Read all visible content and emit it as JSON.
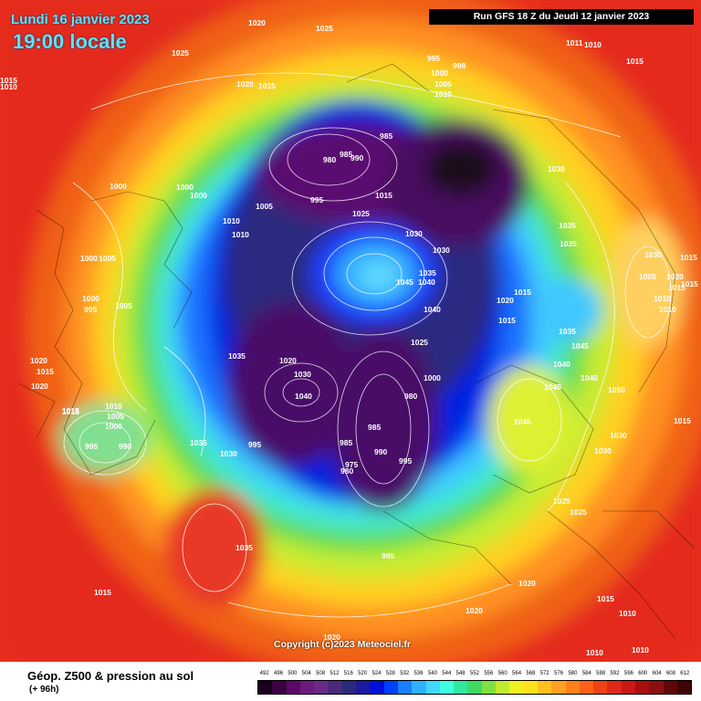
{
  "header": {
    "date": "Lundi 16 janvier 2023",
    "hour": "19:00 locale",
    "run": "Run GFS 18 Z du Jeudi 12 janvier 2023"
  },
  "copyright": "Copyright (c)2023 Meteociel.fr",
  "footer": {
    "title": "Géop. Z500 & pression au sol",
    "subtitle": "(+ 96h)"
  },
  "scale": {
    "labels": [
      "492",
      "496",
      "500",
      "504",
      "508",
      "512",
      "516",
      "520",
      "524",
      "528",
      "532",
      "536",
      "540",
      "544",
      "548",
      "552",
      "556",
      "560",
      "564",
      "568",
      "572",
      "576",
      "580",
      "584",
      "588",
      "592",
      "596",
      "600",
      "604",
      "608",
      "612"
    ],
    "colors": [
      "#1a001a",
      "#3a0040",
      "#5a0a64",
      "#6e1a7c",
      "#6a2a86",
      "#4a2a7c",
      "#2a2a7a",
      "#1a1aa0",
      "#0010d8",
      "#0040ff",
      "#1a80ff",
      "#30b0ff",
      "#40d8ff",
      "#40ffe0",
      "#30e8a0",
      "#40d860",
      "#80e040",
      "#c0ec30",
      "#f0f020",
      "#ffe020",
      "#ffc020",
      "#ffa020",
      "#ff8018",
      "#ff6018",
      "#f04018",
      "#e02818",
      "#c81818",
      "#a81010",
      "#881010",
      "#600808",
      "#400404"
    ]
  },
  "pressure_labels": [
    "1020",
    "1025",
    "1025",
    "1020",
    "1015",
    "1015",
    "1010",
    "1011",
    "1010",
    "995",
    "998",
    "1000",
    "1005",
    "1010",
    "985",
    "980",
    "985",
    "990",
    "1000",
    "1000",
    "995",
    "1000",
    "1005",
    "1010",
    "1010",
    "1015",
    "1025",
    "1030",
    "1030",
    "1035",
    "1035",
    "1030",
    "1000",
    "1005",
    "1040",
    "1045",
    "1040",
    "1020",
    "1015",
    "1015",
    "1005",
    "1010",
    "1020",
    "1015",
    "1010",
    "1015",
    "1000",
    "995",
    "1005",
    "1035",
    "1020",
    "1030",
    "1040",
    "1025",
    "1000",
    "980",
    "985",
    "990",
    "995",
    "985",
    "975",
    "980",
    "995",
    "1035",
    "1030",
    "1015",
    "1010",
    "1005",
    "1000",
    "995",
    "990",
    "1020",
    "1015",
    "1035",
    "1045",
    "1040",
    "1045",
    "1040",
    "1045",
    "1030",
    "1025",
    "1025",
    "1015",
    "1030",
    "1035",
    "995",
    "1020",
    "1020",
    "1015",
    "1010",
    "1010",
    "1010",
    "1020",
    "1015",
    "1035",
    "1015",
    "1050",
    "1030",
    "1015",
    "1020",
    "1015"
  ]
}
